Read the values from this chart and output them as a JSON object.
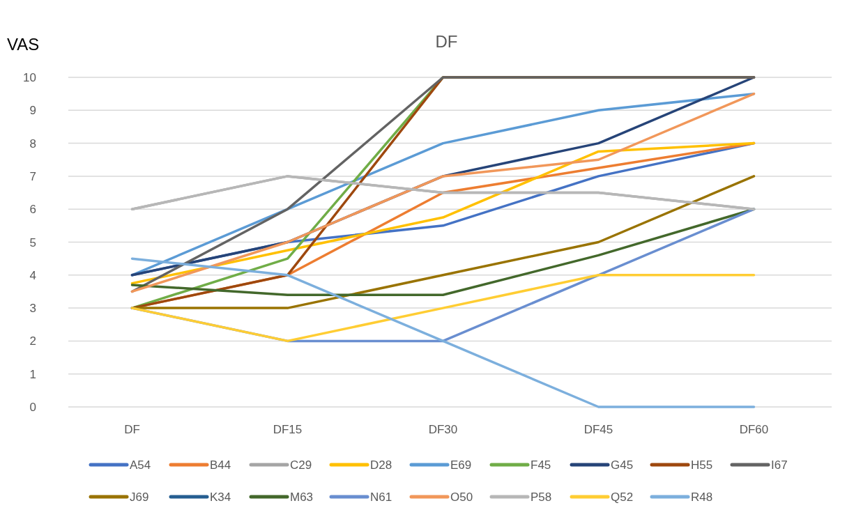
{
  "chart_data": {
    "type": "line",
    "title": "DF",
    "ylabel": "VAS",
    "categories": [
      "DF",
      "DF15",
      "DF30",
      "DF45",
      "DF60"
    ],
    "ylim": [
      0,
      10
    ],
    "yticks": [
      0,
      1,
      2,
      3,
      4,
      5,
      6,
      7,
      8,
      9,
      10
    ],
    "grid": "y",
    "legend": "bottom",
    "marker": "none",
    "line_style": "solid",
    "series": [
      {
        "name": "A54",
        "color": "#4472c4",
        "values": [
          4,
          5,
          5.5,
          7,
          8
        ]
      },
      {
        "name": "B44",
        "color": "#ed7d31",
        "values": [
          3,
          4,
          6.5,
          7.25,
          8
        ]
      },
      {
        "name": "C29",
        "color": "#a5a5a5",
        "values": [
          6,
          7,
          6.5,
          6.5,
          6
        ]
      },
      {
        "name": "D28",
        "color": "#ffc000",
        "values": [
          3.75,
          4.75,
          5.75,
          7.75,
          8
        ]
      },
      {
        "name": "E69",
        "color": "#5b9bd5",
        "values": [
          4,
          6,
          8,
          9,
          9.5
        ]
      },
      {
        "name": "F45",
        "color": "#70ad47",
        "values": [
          3,
          4.5,
          10,
          10,
          10
        ]
      },
      {
        "name": "G45",
        "color": "#264478",
        "values": [
          4,
          5,
          7,
          8,
          10
        ]
      },
      {
        "name": "H55",
        "color": "#9e480e",
        "values": [
          3,
          4,
          10,
          10,
          10
        ]
      },
      {
        "name": "I67",
        "color": "#636363",
        "values": [
          3.5,
          6,
          10,
          10,
          10
        ]
      },
      {
        "name": "J69",
        "color": "#997300",
        "values": [
          3,
          3,
          4,
          5,
          7
        ]
      },
      {
        "name": "K34",
        "color": "#255e91",
        "values": [
          null,
          null,
          null,
          null,
          null
        ]
      },
      {
        "name": "M63",
        "color": "#43682b",
        "values": [
          3.7,
          3.4,
          3.4,
          4.6,
          6
        ]
      },
      {
        "name": "N61",
        "color": "#698ed0",
        "values": [
          3,
          2,
          2,
          4,
          6
        ]
      },
      {
        "name": "O50",
        "color": "#f1975a",
        "values": [
          3.5,
          5,
          7,
          7.5,
          9.5
        ]
      },
      {
        "name": "P58",
        "color": "#b7b7b7",
        "values": [
          6,
          7,
          6.5,
          6.5,
          6
        ]
      },
      {
        "name": "Q52",
        "color": "#ffcd33",
        "values": [
          3,
          2,
          3,
          4,
          4
        ]
      },
      {
        "name": "R48",
        "color": "#7cafdd",
        "values": [
          4.5,
          4,
          2,
          0,
          0
        ]
      }
    ]
  }
}
